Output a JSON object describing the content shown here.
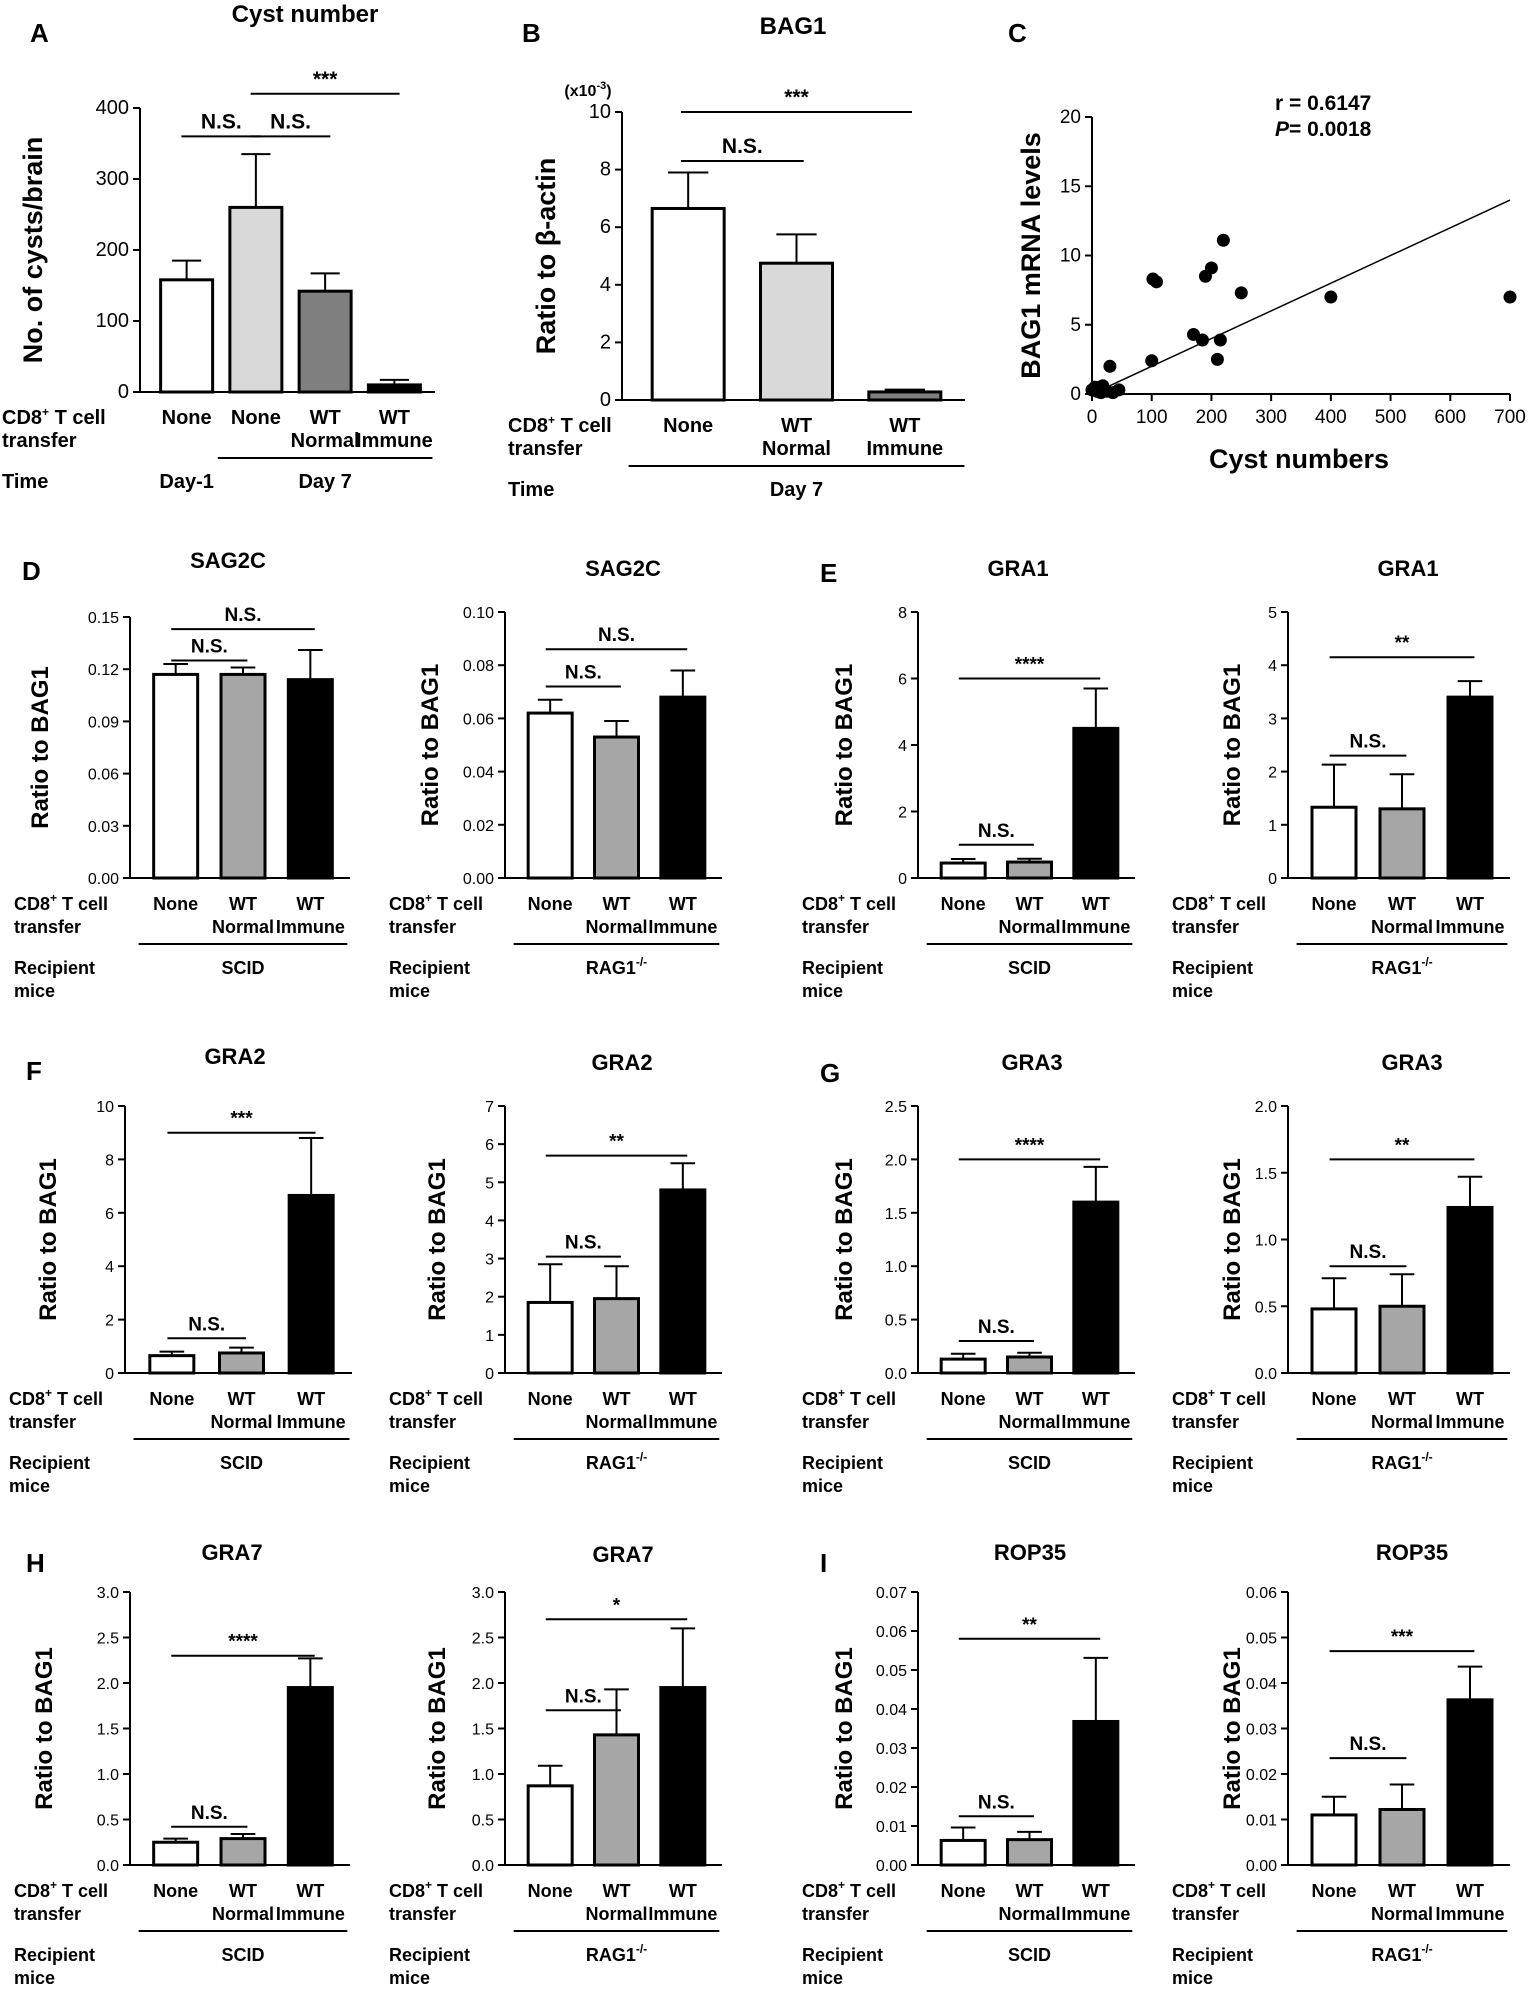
{
  "colors": {
    "white": "#ffffff",
    "light_gray": "#d9d9d9",
    "mid_gray": "#a6a6a6",
    "dark_gray": "#7f7f7f",
    "black": "#000000",
    "axis": "#000000"
  },
  "row_labels": {
    "cd8_line1": "CD8",
    "cd8_sup": "+",
    "cd8_line1_rest": " T cell",
    "cd8_line2": "transfer",
    "time": "Time",
    "recipient_line1": "Recipient",
    "recipient_line2": "mice"
  },
  "chart_data": [
    {
      "id": "A",
      "panel": "A",
      "type": "bar",
      "title": "Cyst number",
      "ylabel": "No. of cysts/brain",
      "ylim": [
        0,
        400
      ],
      "yticks": [
        0,
        100,
        200,
        300,
        400
      ],
      "categories": [
        [
          "None"
        ],
        [
          "None"
        ],
        [
          "WT",
          "Normal"
        ],
        [
          "WT",
          "Immune"
        ]
      ],
      "values": [
        158,
        260,
        142,
        10
      ],
      "errors": [
        27,
        75,
        25,
        7
      ],
      "fills": [
        "white",
        "light_gray",
        "dark_gray",
        "black"
      ],
      "sig": [
        {
          "label": "N.S.",
          "from": 0,
          "to": 1,
          "y": 360
        },
        {
          "label": "N.S.",
          "from": 1,
          "to": 2,
          "y": 360
        },
        {
          "label": "***",
          "from": 1,
          "to": 3,
          "y": 420
        }
      ],
      "groups": [
        {
          "label": "Day-1",
          "from": 0,
          "to": 0
        },
        {
          "label": "Day 7",
          "from": 1,
          "to": 3
        }
      ],
      "row_kind": "time"
    },
    {
      "id": "B",
      "panel": "B",
      "type": "bar",
      "title": "BAG1",
      "ylabel": "Ratio to β-actin",
      "yscale_note": "(x10",
      "yscale_exp": "-3",
      "yscale_close": ")",
      "ylim": [
        0,
        10
      ],
      "yticks": [
        0,
        2,
        4,
        6,
        8,
        10
      ],
      "categories": [
        [
          "None"
        ],
        [
          "WT",
          "Normal"
        ],
        [
          "WT",
          "Immune"
        ]
      ],
      "values": [
        6.65,
        4.75,
        0.28
      ],
      "errors": [
        1.25,
        1.0,
        0.08
      ],
      "fills": [
        "white",
        "light_gray",
        "dark_gray"
      ],
      "sig": [
        {
          "label": "N.S.",
          "from": 0,
          "to": 1,
          "y": 8.3
        },
        {
          "label": "***",
          "from": 0,
          "to": 2,
          "y": 10.0
        }
      ],
      "groups": [
        {
          "label": "Day 7",
          "from": 0,
          "to": 2
        }
      ],
      "row_kind": "time"
    },
    {
      "id": "C",
      "panel": "C",
      "type": "scatter",
      "xlabel": "Cyst numbers",
      "ylabel": "BAG1 mRNA levels",
      "xlim": [
        0,
        700
      ],
      "ylim": [
        0,
        20
      ],
      "xticks": [
        0,
        100,
        200,
        300,
        400,
        500,
        600,
        700
      ],
      "yticks": [
        0,
        5,
        10,
        15,
        20
      ],
      "r_label": "r = 0.6147",
      "p_label_italic": "P",
      "p_label_rest": "= 0.0018",
      "x": [
        0,
        5,
        8,
        12,
        15,
        18,
        20,
        25,
        30,
        35,
        45,
        100,
        102,
        108,
        170,
        185,
        190,
        200,
        210,
        220,
        215,
        250,
        400,
        700
      ],
      "y": [
        0.3,
        0.5,
        0.2,
        0.4,
        0.1,
        0.6,
        0.3,
        0.2,
        2.0,
        0.1,
        0.3,
        2.4,
        8.3,
        8.1,
        4.3,
        3.9,
        8.5,
        9.1,
        2.5,
        11.1,
        3.9,
        7.3,
        7.0,
        7.0
      ],
      "fit": {
        "x0": 0,
        "y0": 0,
        "x1": 700,
        "y1": 14.0
      }
    },
    {
      "id": "D1",
      "panel": "D",
      "type": "bar",
      "title": "SAG2C",
      "ylabel": "Ratio to BAG1",
      "ylim": [
        0,
        0.15
      ],
      "yticks": [
        0.0,
        0.03,
        0.06,
        0.09,
        0.12,
        0.15
      ],
      "tick_labels": [
        "0.00",
        "0.03",
        "0.06",
        "0.09",
        "0.12",
        "0.15"
      ],
      "categories": [
        [
          "None"
        ],
        [
          "WT",
          "Normal"
        ],
        [
          "WT",
          "Immune"
        ]
      ],
      "values": [
        0.117,
        0.117,
        0.114
      ],
      "errors": [
        0.006,
        0.004,
        0.017
      ],
      "fills": [
        "white",
        "mid_gray",
        "black"
      ],
      "sig": [
        {
          "label": "N.S.",
          "from": 0,
          "to": 1,
          "y": 0.125
        },
        {
          "label": "N.S.",
          "from": 0,
          "to": 2,
          "y": 0.143
        }
      ],
      "groups": [
        {
          "label": "SCID",
          "from": 0,
          "to": 2
        }
      ],
      "row_kind": "recipient"
    },
    {
      "id": "D2",
      "type": "bar",
      "title": "SAG2C",
      "ylabel": "Ratio to BAG1",
      "ylim": [
        0,
        0.1
      ],
      "yticks": [
        0,
        0.02,
        0.04,
        0.06,
        0.08,
        0.1
      ],
      "tick_labels": [
        "0.00",
        "0.02",
        "0.04",
        "0.06",
        "0.08",
        "0.10"
      ],
      "categories": [
        [
          "None"
        ],
        [
          "WT",
          "Normal"
        ],
        [
          "WT",
          "Immune"
        ]
      ],
      "values": [
        0.062,
        0.053,
        0.068
      ],
      "errors": [
        0.005,
        0.006,
        0.01
      ],
      "fills": [
        "white",
        "mid_gray",
        "black"
      ],
      "sig": [
        {
          "label": "N.S.",
          "from": 0,
          "to": 1,
          "y": 0.072
        },
        {
          "label": "N.S.",
          "from": 0,
          "to": 2,
          "y": 0.086
        }
      ],
      "groups": [
        {
          "label": "RAG1",
          "sup": "-/-",
          "from": 0,
          "to": 2
        }
      ],
      "row_kind": "recipient"
    },
    {
      "id": "E1",
      "panel": "E",
      "type": "bar",
      "title": "GRA1",
      "ylabel": "Ratio to BAG1",
      "ylim": [
        0,
        8
      ],
      "yticks": [
        0,
        2,
        4,
        6,
        8
      ],
      "categories": [
        [
          "None"
        ],
        [
          "WT",
          "Normal"
        ],
        [
          "WT",
          "Immune"
        ]
      ],
      "values": [
        0.45,
        0.48,
        4.5
      ],
      "errors": [
        0.12,
        0.1,
        1.2
      ],
      "fills": [
        "white",
        "mid_gray",
        "black"
      ],
      "sig": [
        {
          "label": "N.S.",
          "from": 0,
          "to": 1,
          "y": 1.0
        },
        {
          "label": "****",
          "from": 0,
          "to": 2,
          "y": 6.0
        }
      ],
      "groups": [
        {
          "label": "SCID",
          "from": 0,
          "to": 2
        }
      ],
      "row_kind": "recipient"
    },
    {
      "id": "E2",
      "type": "bar",
      "title": "GRA1",
      "ylabel": "Ratio to BAG1",
      "ylim": [
        0,
        5
      ],
      "yticks": [
        0,
        1,
        2,
        3,
        4,
        5
      ],
      "categories": [
        [
          "None"
        ],
        [
          "WT",
          "Normal"
        ],
        [
          "WT",
          "Immune"
        ]
      ],
      "values": [
        1.33,
        1.3,
        3.4
      ],
      "errors": [
        0.8,
        0.65,
        0.3
      ],
      "fills": [
        "white",
        "mid_gray",
        "black"
      ],
      "sig": [
        {
          "label": "N.S.",
          "from": 0,
          "to": 1,
          "y": 2.3
        },
        {
          "label": "**",
          "from": 0,
          "to": 2,
          "y": 4.15
        }
      ],
      "groups": [
        {
          "label": "RAG1",
          "sup": "-/-",
          "from": 0,
          "to": 2
        }
      ],
      "row_kind": "recipient"
    },
    {
      "id": "F1",
      "panel": "F",
      "type": "bar",
      "title": "GRA2",
      "ylabel": "Ratio to BAG1",
      "ylim": [
        0,
        10
      ],
      "yticks": [
        0,
        2,
        4,
        6,
        8,
        10
      ],
      "categories": [
        [
          "None"
        ],
        [
          "WT",
          "Normal"
        ],
        [
          "WT",
          "Immune"
        ]
      ],
      "values": [
        0.65,
        0.75,
        6.65
      ],
      "errors": [
        0.15,
        0.2,
        2.15
      ],
      "fills": [
        "white",
        "mid_gray",
        "black"
      ],
      "sig": [
        {
          "label": "N.S.",
          "from": 0,
          "to": 1,
          "y": 1.3
        },
        {
          "label": "***",
          "from": 0,
          "to": 2,
          "y": 9.0
        }
      ],
      "groups": [
        {
          "label": "SCID",
          "from": 0,
          "to": 2
        }
      ],
      "row_kind": "recipient"
    },
    {
      "id": "F2",
      "type": "bar",
      "title": "GRA2",
      "ylabel": "Ratio to BAG1",
      "ylim": [
        0,
        7
      ],
      "yticks": [
        0,
        1,
        2,
        3,
        4,
        5,
        6,
        7
      ],
      "categories": [
        [
          "None"
        ],
        [
          "WT",
          "Normal"
        ],
        [
          "WT",
          "Immune"
        ]
      ],
      "values": [
        1.85,
        1.95,
        4.8
      ],
      "errors": [
        1.0,
        0.85,
        0.7
      ],
      "fills": [
        "white",
        "mid_gray",
        "black"
      ],
      "sig": [
        {
          "label": "N.S.",
          "from": 0,
          "to": 1,
          "y": 3.05
        },
        {
          "label": "**",
          "from": 0,
          "to": 2,
          "y": 5.7
        }
      ],
      "groups": [
        {
          "label": "RAG1",
          "sup": "-/-",
          "from": 0,
          "to": 2
        }
      ],
      "row_kind": "recipient"
    },
    {
      "id": "G1",
      "panel": "G",
      "type": "bar",
      "title": "GRA3",
      "ylabel": "Ratio to BAG1",
      "ylim": [
        0,
        2.5
      ],
      "yticks": [
        0,
        0.5,
        1,
        1.5,
        2,
        2.5
      ],
      "tick_labels": [
        "0.0",
        "0.5",
        "1.0",
        "1.5",
        "2.0",
        "2.5"
      ],
      "categories": [
        [
          "None"
        ],
        [
          "WT",
          "Normal"
        ],
        [
          "WT",
          "Immune"
        ]
      ],
      "values": [
        0.13,
        0.15,
        1.6
      ],
      "errors": [
        0.05,
        0.04,
        0.33
      ],
      "fills": [
        "white",
        "mid_gray",
        "black"
      ],
      "sig": [
        {
          "label": "N.S.",
          "from": 0,
          "to": 1,
          "y": 0.3
        },
        {
          "label": "****",
          "from": 0,
          "to": 2,
          "y": 2.0
        }
      ],
      "groups": [
        {
          "label": "SCID",
          "from": 0,
          "to": 2
        }
      ],
      "row_kind": "recipient"
    },
    {
      "id": "G2",
      "type": "bar",
      "title": "GRA3",
      "ylabel": "Ratio to BAG1",
      "ylim": [
        0,
        2
      ],
      "yticks": [
        0,
        0.5,
        1,
        1.5,
        2
      ],
      "tick_labels": [
        "0.0",
        "0.5",
        "1.0",
        "1.5",
        "2.0"
      ],
      "categories": [
        [
          "None"
        ],
        [
          "WT",
          "Normal"
        ],
        [
          "WT",
          "Immune"
        ]
      ],
      "values": [
        0.48,
        0.5,
        1.24
      ],
      "errors": [
        0.23,
        0.24,
        0.23
      ],
      "fills": [
        "white",
        "mid_gray",
        "black"
      ],
      "sig": [
        {
          "label": "N.S.",
          "from": 0,
          "to": 1,
          "y": 0.8
        },
        {
          "label": "**",
          "from": 0,
          "to": 2,
          "y": 1.6
        }
      ],
      "groups": [
        {
          "label": "RAG1",
          "sup": "-/-",
          "from": 0,
          "to": 2
        }
      ],
      "row_kind": "recipient"
    },
    {
      "id": "H1",
      "panel": "H",
      "type": "bar",
      "title": "GRA7",
      "ylabel": "Ratio to BAG1",
      "ylim": [
        0,
        3
      ],
      "yticks": [
        0,
        0.5,
        1,
        1.5,
        2,
        2.5,
        3
      ],
      "tick_labels": [
        "0.0",
        "0.5",
        "1.0",
        "1.5",
        "2.0",
        "2.5",
        "3.0"
      ],
      "categories": [
        [
          "None"
        ],
        [
          "WT",
          "Normal"
        ],
        [
          "WT",
          "Immune"
        ]
      ],
      "values": [
        0.25,
        0.29,
        1.95
      ],
      "errors": [
        0.04,
        0.05,
        0.32
      ],
      "fills": [
        "white",
        "mid_gray",
        "black"
      ],
      "sig": [
        {
          "label": "N.S.",
          "from": 0,
          "to": 1,
          "y": 0.42
        },
        {
          "label": "****",
          "from": 0,
          "to": 2,
          "y": 2.3
        }
      ],
      "groups": [
        {
          "label": "SCID",
          "from": 0,
          "to": 2
        }
      ],
      "row_kind": "recipient"
    },
    {
      "id": "H2",
      "type": "bar",
      "title": "GRA7",
      "ylabel": "Ratio to BAG1",
      "ylim": [
        0,
        3
      ],
      "yticks": [
        0,
        0.5,
        1,
        1.5,
        2,
        2.5,
        3
      ],
      "tick_labels": [
        "0.0",
        "0.5",
        "1.0",
        "1.5",
        "2.0",
        "2.5",
        "3.0"
      ],
      "categories": [
        [
          "None"
        ],
        [
          "WT",
          "Normal"
        ],
        [
          "WT",
          "Immune"
        ]
      ],
      "values": [
        0.87,
        1.43,
        1.95
      ],
      "errors": [
        0.22,
        0.5,
        0.65
      ],
      "fills": [
        "white",
        "mid_gray",
        "black"
      ],
      "sig": [
        {
          "label": "N.S.",
          "from": 0,
          "to": 1,
          "y": 1.7
        },
        {
          "label": "*",
          "from": 0,
          "to": 2,
          "y": 2.7
        }
      ],
      "groups": [
        {
          "label": "RAG1",
          "sup": "-/-",
          "from": 0,
          "to": 2
        }
      ],
      "row_kind": "recipient"
    },
    {
      "id": "I1",
      "panel": "I",
      "type": "bar",
      "title": "ROP35",
      "ylabel": "Ratio to BAG1",
      "ylim": [
        0,
        0.07
      ],
      "yticks": [
        0,
        0.01,
        0.02,
        0.03,
        0.04,
        0.05,
        0.06,
        0.07
      ],
      "tick_labels": [
        "0.00",
        "0.01",
        "0.02",
        "0.03",
        "0.04",
        "0.05",
        "0.06",
        "0.07"
      ],
      "categories": [
        [
          "None"
        ],
        [
          "WT",
          "Normal"
        ],
        [
          "WT",
          "Immune"
        ]
      ],
      "values": [
        0.0063,
        0.0065,
        0.0368
      ],
      "errors": [
        0.0033,
        0.002,
        0.0163
      ],
      "fills": [
        "white",
        "mid_gray",
        "black"
      ],
      "sig": [
        {
          "label": "N.S.",
          "from": 0,
          "to": 1,
          "y": 0.0125
        },
        {
          "label": "**",
          "from": 0,
          "to": 2,
          "y": 0.058
        }
      ],
      "groups": [
        {
          "label": "SCID",
          "from": 0,
          "to": 2
        }
      ],
      "row_kind": "recipient"
    },
    {
      "id": "I2",
      "type": "bar",
      "title": "ROP35",
      "ylabel": "Ratio to BAG1",
      "ylim": [
        0,
        0.06
      ],
      "yticks": [
        0,
        0.01,
        0.02,
        0.03,
        0.04,
        0.05,
        0.06
      ],
      "tick_labels": [
        "0.00",
        "0.01",
        "0.02",
        "0.03",
        "0.04",
        "0.05",
        "0.06"
      ],
      "categories": [
        [
          "None"
        ],
        [
          "WT",
          "Normal"
        ],
        [
          "WT",
          "Immune"
        ]
      ],
      "values": [
        0.011,
        0.0122,
        0.0363
      ],
      "errors": [
        0.004,
        0.0055,
        0.0073
      ],
      "fills": [
        "white",
        "mid_gray",
        "black"
      ],
      "sig": [
        {
          "label": "N.S.",
          "from": 0,
          "to": 1,
          "y": 0.0235
        },
        {
          "label": "***",
          "from": 0,
          "to": 2,
          "y": 0.047
        }
      ],
      "groups": [
        {
          "label": "RAG1",
          "sup": "-/-",
          "from": 0,
          "to": 2
        }
      ],
      "row_kind": "recipient"
    }
  ]
}
